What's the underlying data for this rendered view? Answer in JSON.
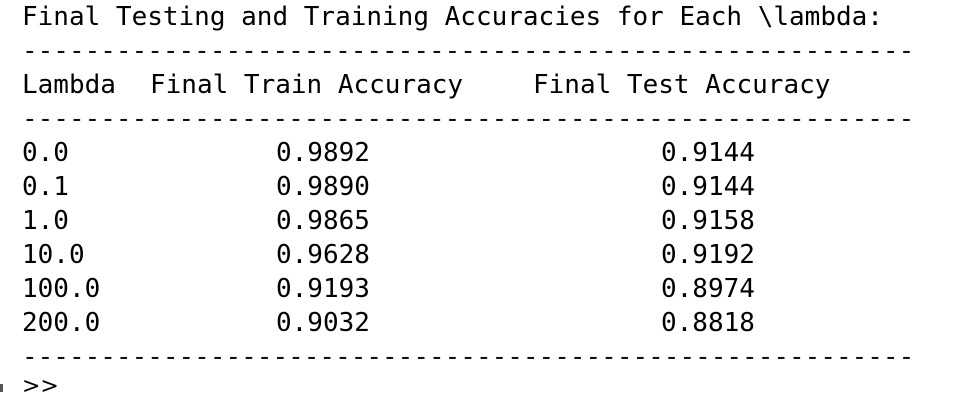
{
  "console": {
    "title": "Final Testing and Training Accuracies for Each \\lambda:",
    "separator": "---------------------------------------------------------",
    "header": [
      "Lambda",
      "Final Train Accuracy",
      "Final Test Accuracy"
    ],
    "rows": [
      [
        "0.0",
        "0.9892",
        "0.9144"
      ],
      [
        "0.1",
        "0.9890",
        "0.9144"
      ],
      [
        "1.0",
        "0.9865",
        "0.9158"
      ],
      [
        "10.0",
        "0.9628",
        "0.9192"
      ],
      [
        "100.0",
        "0.9193",
        "0.8974"
      ],
      [
        "200.0",
        "0.9032",
        "0.8818"
      ]
    ],
    "prompt": ">>"
  }
}
